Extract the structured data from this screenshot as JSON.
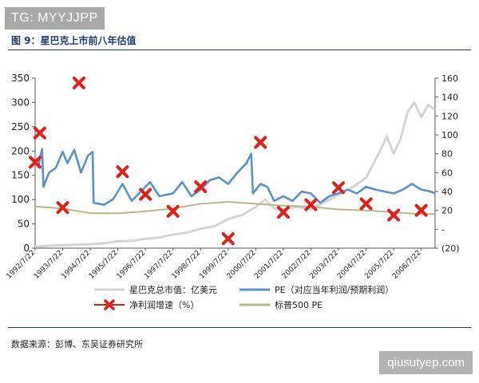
{
  "watermark_top": "TG: MYYJJPP",
  "figure_title": "图 9：星巴克上市前八年估值",
  "source": "数据来源：彭博、东吴证券研究所",
  "watermark_bottom": "qiusutyep.com",
  "chart_data": {
    "type": "line",
    "title": "图 9：星巴克上市前八年估值",
    "left_axis": {
      "ylim": [
        0,
        350
      ],
      "ticks": [
        "0",
        "50",
        "100",
        "150",
        "200",
        "250",
        "300",
        "350"
      ]
    },
    "right_axis": {
      "ylim": [
        -20,
        160
      ],
      "ticks": [
        "(20)",
        "-",
        "20",
        "40",
        "60",
        "80",
        "100",
        "120",
        "140",
        "160"
      ]
    },
    "x_ticks": [
      "1992/7/22",
      "1993/7/22",
      "1994/7/22",
      "1995/7/22",
      "1996/7/22",
      "1997/7/22",
      "1998/7/22",
      "1999/7/22",
      "2000/7/22",
      "2001/7/22",
      "2002/7/22",
      "2003/7/22",
      "2004/7/22",
      "2005/7/22",
      "2006/7/22"
    ],
    "x_start": "1992/7/22",
    "x_end": "2007/1/22",
    "series": [
      {
        "name": "星巴克总市值：亿美元",
        "axis": "left",
        "color": "#d4d4d4",
        "style": "line",
        "points": [
          [
            "1992/7/22",
            3
          ],
          [
            "1993/1/22",
            5
          ],
          [
            "1993/7/22",
            6
          ],
          [
            "1994/1/22",
            7
          ],
          [
            "1994/7/22",
            8
          ],
          [
            "1995/1/22",
            10
          ],
          [
            "1995/7/22",
            14
          ],
          [
            "1996/1/22",
            15
          ],
          [
            "1996/7/22",
            19
          ],
          [
            "1997/1/22",
            22
          ],
          [
            "1997/7/22",
            28
          ],
          [
            "1998/1/22",
            32
          ],
          [
            "1998/7/22",
            40
          ],
          [
            "1999/1/22",
            45
          ],
          [
            "1999/7/22",
            60
          ],
          [
            "2000/1/22",
            68
          ],
          [
            "2000/7/22",
            85
          ],
          [
            "2000/11/22",
            100
          ],
          [
            "2001/3/22",
            82
          ],
          [
            "2001/7/22",
            80
          ],
          [
            "2002/1/22",
            85
          ],
          [
            "2002/7/22",
            80
          ],
          [
            "2003/1/22",
            95
          ],
          [
            "2003/7/22",
            110
          ],
          [
            "2004/1/22",
            125
          ],
          [
            "2004/7/22",
            145
          ],
          [
            "2005/1/22",
            200
          ],
          [
            "2005/4/22",
            230
          ],
          [
            "2005/7/22",
            195
          ],
          [
            "2005/10/22",
            225
          ],
          [
            "2006/1/22",
            280
          ],
          [
            "2006/4/22",
            300
          ],
          [
            "2006/7/22",
            270
          ],
          [
            "2006/10/22",
            295
          ],
          [
            "2007/1/22",
            285
          ]
        ]
      },
      {
        "name": "PE（对应当年利润/预期利润）",
        "axis": "right",
        "color": "#5b92c9",
        "style": "line",
        "points": [
          [
            "1992/7/22",
            75
          ],
          [
            "1992/9/1",
            66
          ],
          [
            "1992/10/22",
            85
          ],
          [
            "1992/11/10",
            45
          ],
          [
            "1993/1/22",
            60
          ],
          [
            "1993/4/22",
            65
          ],
          [
            "1993/7/22",
            82
          ],
          [
            "1993/9/22",
            70
          ],
          [
            "1993/12/22",
            84
          ],
          [
            "1994/3/22",
            60
          ],
          [
            "1994/6/22",
            78
          ],
          [
            "1994/8/22",
            82
          ],
          [
            "1994/9/5",
            28
          ],
          [
            "1995/1/22",
            26
          ],
          [
            "1995/5/22",
            32
          ],
          [
            "1995/9/22",
            48
          ],
          [
            "1996/1/22",
            30
          ],
          [
            "1996/5/22",
            40
          ],
          [
            "1996/9/22",
            50
          ],
          [
            "1997/1/22",
            35
          ],
          [
            "1997/7/22",
            38
          ],
          [
            "1997/11/22",
            50
          ],
          [
            "1998/3/22",
            35
          ],
          [
            "1998/7/22",
            42
          ],
          [
            "1998/11/22",
            52
          ],
          [
            "1999/3/22",
            55
          ],
          [
            "1999/7/22",
            48
          ],
          [
            "1999/11/22",
            60
          ],
          [
            "2000/3/22",
            70
          ],
          [
            "2000/5/22",
            80
          ],
          [
            "2000/6/15",
            38
          ],
          [
            "2000/9/22",
            48
          ],
          [
            "2000/12/22",
            45
          ],
          [
            "2001/3/22",
            30
          ],
          [
            "2001/7/22",
            35
          ],
          [
            "2001/11/22",
            30
          ],
          [
            "2002/3/22",
            40
          ],
          [
            "2002/7/22",
            38
          ],
          [
            "2002/11/22",
            28
          ],
          [
            "2003/3/22",
            35
          ],
          [
            "2003/7/22",
            38
          ],
          [
            "2003/11/22",
            42
          ],
          [
            "2004/3/22",
            38
          ],
          [
            "2004/7/22",
            45
          ],
          [
            "2004/11/22",
            42
          ],
          [
            "2005/3/22",
            40
          ],
          [
            "2005/7/22",
            38
          ],
          [
            "2005/11/22",
            42
          ],
          [
            "2006/3/22",
            48
          ],
          [
            "2006/7/22",
            42
          ],
          [
            "2006/11/22",
            40
          ],
          [
            "2007/1/22",
            38
          ]
        ]
      },
      {
        "name": "净利润增速（%）",
        "axis": "right",
        "color": "#e0201b",
        "style": "markers",
        "points": [
          [
            "1992/7/22",
            71
          ],
          [
            "1992/9/22",
            102
          ],
          [
            "1993/7/22",
            23
          ],
          [
            "1994/2/22",
            155
          ],
          [
            "1995/9/22",
            61
          ],
          [
            "1996/7/22",
            37
          ],
          [
            "1997/7/22",
            19
          ],
          [
            "1998/7/22",
            45
          ],
          [
            "1999/7/22",
            -10
          ],
          [
            "2000/9/22",
            92
          ],
          [
            "2001/7/22",
            18
          ],
          [
            "2002/7/22",
            26
          ],
          [
            "2003/7/22",
            44
          ],
          [
            "2004/7/22",
            27
          ],
          [
            "2005/7/22",
            15
          ],
          [
            "2006/7/22",
            20
          ]
        ]
      },
      {
        "name": "标普500 PE",
        "axis": "right",
        "color": "#bdb58c",
        "style": "line",
        "points": [
          [
            "1992/7/22",
            24
          ],
          [
            "1993/7/22",
            22
          ],
          [
            "1994/7/22",
            17
          ],
          [
            "1995/7/22",
            17
          ],
          [
            "1996/7/22",
            19
          ],
          [
            "1997/7/22",
            22
          ],
          [
            "1998/7/22",
            27
          ],
          [
            "1999/7/22",
            29
          ],
          [
            "2000/7/22",
            27
          ],
          [
            "2001/7/22",
            25
          ],
          [
            "2002/7/22",
            24
          ],
          [
            "2003/7/22",
            21
          ],
          [
            "2004/7/22",
            20
          ],
          [
            "2005/7/22",
            18
          ],
          [
            "2006/7/22",
            16
          ],
          [
            "2007/1/22",
            16
          ]
        ]
      }
    ],
    "legend": [
      {
        "label": "星巴克总市值：亿美元",
        "color": "#d4d4d4",
        "kind": "line"
      },
      {
        "label": "PE（对应当年利润/预期利润）",
        "color": "#5b92c9",
        "kind": "line"
      },
      {
        "label": "净利润增速（%）",
        "color": "#e0201b",
        "kind": "marker"
      },
      {
        "label": "标普500 PE",
        "color": "#bdb58c",
        "kind": "line"
      }
    ],
    "legend_position": "bottom"
  }
}
